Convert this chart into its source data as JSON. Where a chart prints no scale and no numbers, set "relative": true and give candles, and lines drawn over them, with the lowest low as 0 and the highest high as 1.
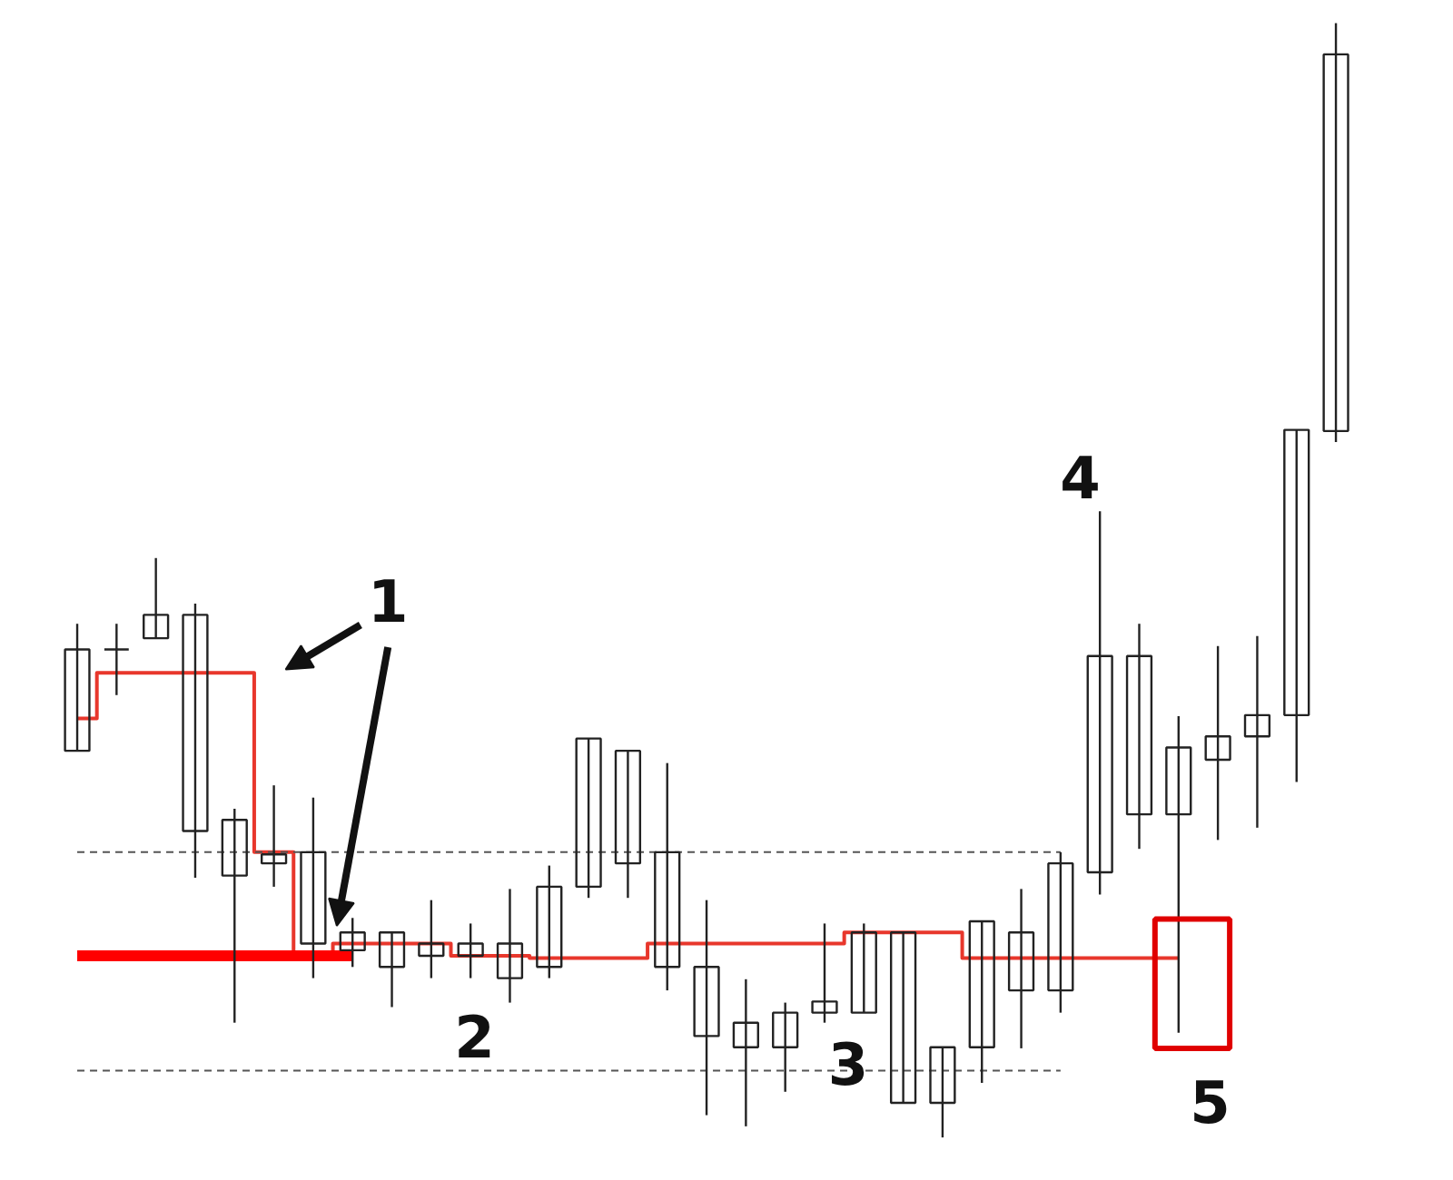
{
  "chart_data": {
    "type": "candlestick",
    "relative": true,
    "categories": [
      null,
      null,
      null,
      null,
      null,
      null,
      null,
      null,
      null,
      null,
      null,
      null,
      null,
      null,
      null,
      null,
      null,
      null,
      null,
      null,
      null,
      null,
      null,
      null,
      null,
      null,
      null,
      null,
      null,
      null,
      null,
      null,
      null
    ],
    "ohlc": [
      [
        0.347,
        0.461,
        0.347,
        0.438
      ],
      [
        0.438,
        0.461,
        0.397,
        0.438
      ],
      [
        0.448,
        0.52,
        0.448,
        0.469
      ],
      [
        0.275,
        0.479,
        0.233,
        0.469
      ],
      [
        0.235,
        0.295,
        0.103,
        0.285
      ],
      [
        0.246,
        0.316,
        0.225,
        0.254
      ],
      [
        0.174,
        0.305,
        0.143,
        0.256
      ],
      [
        0.168,
        0.197,
        0.153,
        0.184
      ],
      [
        0.153,
        0.184,
        0.117,
        0.184
      ],
      [
        0.163,
        0.213,
        0.143,
        0.174
      ],
      [
        0.163,
        0.192,
        0.143,
        0.174
      ],
      [
        0.143,
        0.223,
        0.121,
        0.174
      ],
      [
        0.153,
        0.244,
        0.143,
        0.225
      ],
      [
        0.225,
        0.358,
        0.215,
        0.358
      ],
      [
        0.246,
        0.347,
        0.215,
        0.347
      ],
      [
        0.153,
        0.336,
        0.132,
        0.256
      ],
      [
        0.091,
        0.213,
        0.02,
        0.153
      ],
      [
        0.081,
        0.142,
        0.01,
        0.103
      ],
      [
        0.081,
        0.121,
        0.041,
        0.112
      ],
      [
        0.112,
        0.192,
        0.103,
        0.122
      ],
      [
        0.112,
        0.192,
        0.112,
        0.184
      ],
      [
        0.031,
        0.184,
        0.031,
        0.184
      ],
      [
        0.031,
        0.081,
        0.0,
        0.081
      ],
      [
        0.081,
        0.194,
        0.049,
        0.194
      ],
      [
        0.132,
        0.223,
        0.08,
        0.184
      ],
      [
        0.132,
        0.256,
        0.112,
        0.246
      ],
      [
        0.238,
        0.562,
        0.218,
        0.432
      ],
      [
        0.29,
        0.461,
        0.259,
        0.432
      ],
      [
        0.29,
        0.378,
        0.094,
        0.35
      ],
      [
        0.339,
        0.441,
        0.267,
        0.36
      ],
      [
        0.36,
        0.45,
        0.278,
        0.379
      ],
      [
        0.379,
        0.635,
        0.319,
        0.635
      ],
      [
        0.634,
        1.0,
        0.624,
        0.972
      ]
    ],
    "series": [
      {
        "type": "step",
        "color": "#e8372c",
        "values": [
          0.376,
          0.417,
          0.417,
          0.417,
          0.417,
          0.256,
          0.161,
          0.174,
          0.174,
          0.174,
          0.163,
          0.163,
          0.161,
          0.161,
          0.161,
          0.174,
          0.174,
          0.174,
          0.174,
          0.174,
          0.184,
          0.184,
          0.184,
          0.161,
          0.161,
          0.161,
          0.161,
          0.161,
          0.161,
          null,
          null,
          null,
          null
        ]
      },
      {
        "type": "line",
        "color": "#ff0000",
        "values": [
          0.163,
          0.163,
          0.163,
          0.163,
          0.163,
          0.163,
          0.163,
          0.163,
          null,
          null,
          null,
          null,
          null,
          null,
          null,
          null,
          null,
          null,
          null,
          null,
          null,
          null,
          null,
          null,
          null,
          null,
          null,
          null,
          null,
          null,
          null,
          null,
          null
        ]
      },
      {
        "type": "line",
        "color": "#555555",
        "line_style": "dashed",
        "values": [
          0.256,
          0.256,
          0.256,
          0.256,
          0.256,
          0.256,
          0.256,
          0.256,
          0.256,
          0.256,
          0.256,
          0.256,
          0.256,
          0.256,
          0.256,
          0.256,
          0.256,
          0.256,
          0.256,
          0.256,
          0.256,
          0.256,
          0.256,
          0.256,
          0.256,
          0.256,
          null,
          null,
          null,
          null,
          null,
          null,
          null
        ]
      },
      {
        "type": "line",
        "color": "#555555",
        "line_style": "dashed",
        "values": [
          0.06,
          0.06,
          0.06,
          0.06,
          0.06,
          0.06,
          0.06,
          0.06,
          0.06,
          0.06,
          0.06,
          0.06,
          0.06,
          0.06,
          0.06,
          0.06,
          0.06,
          0.06,
          0.06,
          0.06,
          0.06,
          0.06,
          0.06,
          0.06,
          0.06,
          0.06,
          null,
          null,
          null,
          null,
          null,
          null,
          null
        ]
      }
    ],
    "annotations": [
      "1",
      "2",
      "3",
      "4",
      "5"
    ]
  }
}
